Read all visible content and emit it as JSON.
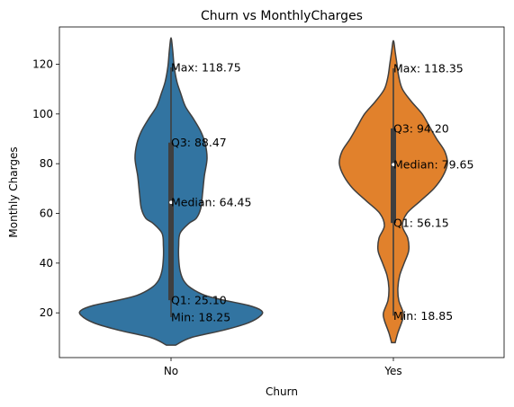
{
  "chart_data": {
    "type": "violin",
    "title": "Churn vs MonthlyCharges",
    "xlabel": "Churn",
    "ylabel": "Monthly Charges",
    "categories": [
      "No",
      "Yes"
    ],
    "ylim": [
      2,
      135
    ],
    "yticks": [
      20,
      40,
      60,
      80,
      100,
      120
    ],
    "colors": {
      "No": "#3274a1",
      "Yes": "#e1812c",
      "outline": "#3f3f3f"
    },
    "grid": false,
    "series": [
      {
        "category": "No",
        "color": "#3274a1",
        "stats": {
          "min": 18.25,
          "q1": 25.1,
          "median": 64.45,
          "q3": 88.47,
          "max": 118.75
        },
        "annotations": {
          "max": "Max: 118.75",
          "q3": "Q3: 88.47",
          "median": "Median: 64.45",
          "q1": "Q1: 25.10",
          "min": "Min: 18.25"
        },
        "density_profile": [
          [
            7,
            0.05
          ],
          [
            10,
            0.22
          ],
          [
            13,
            0.58
          ],
          [
            16,
            0.86
          ],
          [
            19,
            1.0
          ],
          [
            21,
            1.0
          ],
          [
            23,
            0.86
          ],
          [
            25,
            0.6
          ],
          [
            27,
            0.38
          ],
          [
            30,
            0.22
          ],
          [
            33,
            0.14
          ],
          [
            37,
            0.1
          ],
          [
            42,
            0.085
          ],
          [
            47,
            0.085
          ],
          [
            52,
            0.1
          ],
          [
            56,
            0.2
          ],
          [
            58,
            0.28
          ],
          [
            62,
            0.33
          ],
          [
            68,
            0.35
          ],
          [
            75,
            0.37
          ],
          [
            82,
            0.4
          ],
          [
            88,
            0.38
          ],
          [
            93,
            0.33
          ],
          [
            98,
            0.25
          ],
          [
            103,
            0.16
          ],
          [
            108,
            0.11
          ],
          [
            113,
            0.065
          ],
          [
            119,
            0.035
          ],
          [
            125,
            0.02
          ],
          [
            130,
            0.005
          ]
        ]
      },
      {
        "category": "Yes",
        "color": "#e1812c",
        "stats": {
          "min": 18.85,
          "q1": 56.15,
          "median": 79.65,
          "q3": 94.2,
          "max": 118.35
        },
        "annotations": {
          "max": "Max: 118.35",
          "q3": "Q3: 94.20",
          "median": "Median: 79.65",
          "q1": "Q1: 56.15",
          "min": "Min: 18.85"
        },
        "density_profile": [
          [
            8,
            0.02
          ],
          [
            12,
            0.05
          ],
          [
            17,
            0.1
          ],
          [
            20,
            0.11
          ],
          [
            25,
            0.06
          ],
          [
            30,
            0.05
          ],
          [
            35,
            0.07
          ],
          [
            40,
            0.12
          ],
          [
            45,
            0.17
          ],
          [
            50,
            0.16
          ],
          [
            55,
            0.1
          ],
          [
            60,
            0.15
          ],
          [
            65,
            0.3
          ],
          [
            70,
            0.45
          ],
          [
            75,
            0.55
          ],
          [
            80,
            0.6
          ],
          [
            85,
            0.57
          ],
          [
            90,
            0.48
          ],
          [
            95,
            0.4
          ],
          [
            100,
            0.32
          ],
          [
            105,
            0.2
          ],
          [
            110,
            0.1
          ],
          [
            115,
            0.06
          ],
          [
            120,
            0.04
          ],
          [
            125,
            0.02
          ],
          [
            129,
            0.005
          ]
        ]
      }
    ]
  }
}
